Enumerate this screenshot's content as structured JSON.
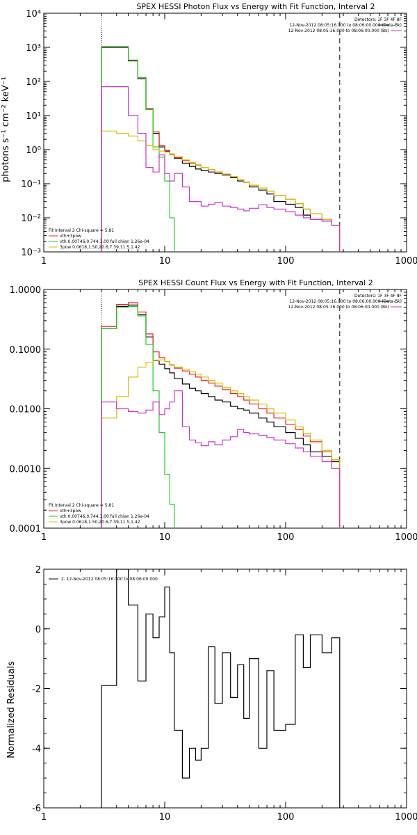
{
  "chart_data": [
    {
      "type": "line",
      "title": "SPEX HESSI Photon Flux vs Energy with Fit Function, Interval 2",
      "ylabel": "photons s⁻¹ cm⁻² keV⁻¹",
      "xlabel": "",
      "xscale": "log",
      "yscale": "log",
      "xlim": [
        1,
        1000
      ],
      "ylim": [
        0.001,
        10000
      ],
      "x_ticks": [
        1,
        10,
        100,
        1000
      ],
      "x_tick_labels": [
        "1",
        "10",
        "100",
        "1000"
      ],
      "y_ticks": [
        0.001,
        0.01,
        0.1,
        1,
        10,
        100,
        1000,
        10000
      ],
      "y_tick_labels": [
        "10⁻³",
        "10⁻²",
        "10⁻¹",
        "10⁰",
        "10¹",
        "10²",
        "10³",
        "10⁴"
      ],
      "vlines": [
        {
          "x": 3,
          "style": "dotted"
        },
        {
          "x": 280,
          "style": "dashed"
        }
      ],
      "top_legend": {
        "placement": "top-right",
        "lines": [
          {
            "text": "Detectors: 1F 3F 4F 8F",
            "color": "#000000"
          },
          {
            "text": "12-Nov-2012 08:05:16.000 to 08:06:00.000 (Data-Bk)",
            "color": "#000000"
          },
          {
            "text": "12-Nov-2012 08:05:16.000 to 08:06:00.000 (Bk)",
            "color": "#cc33cc"
          }
        ]
      },
      "fit_legend": {
        "placement": "bottom-left",
        "title": "Fit Interval 2   Chi-square = 5.81",
        "lines": [
          {
            "text": "vth+3pow",
            "color": "#ee2222"
          },
          {
            "text": "vth 0.00746,0.744,1.00   full chian 1.26e-04",
            "color": "#22cc22"
          },
          {
            "text": "3pow 0.0618,1.50,20.6,7.39,11.5,1.42",
            "color": "#d4c000"
          }
        ]
      },
      "series": [
        {
          "role": "data-bk",
          "color": "#000000",
          "edges": [
            3,
            4,
            5,
            6,
            7,
            8,
            9,
            10,
            11,
            12,
            14,
            16,
            18,
            20,
            23,
            26,
            30,
            35,
            40,
            45,
            50,
            60,
            70,
            80,
            100,
            120,
            140,
            160,
            200,
            240,
            280
          ],
          "values": [
            1000,
            1000,
            400,
            120,
            15,
            3.0,
            1.2,
            0.9,
            0.75,
            0.55,
            0.4,
            0.32,
            0.27,
            0.24,
            0.22,
            0.2,
            0.18,
            0.15,
            0.12,
            0.11,
            0.08,
            0.065,
            0.05,
            0.03,
            0.025,
            0.02,
            0.012,
            0.009,
            0.008,
            0.006
          ]
        },
        {
          "role": "total-fit",
          "color": "#ee2222",
          "edges": [
            3,
            4,
            5,
            6,
            7,
            8,
            9,
            10,
            11,
            12,
            14,
            16,
            18,
            20,
            23,
            26,
            30,
            35,
            40,
            45,
            50,
            60,
            70,
            80,
            100,
            120,
            140,
            160,
            200,
            240,
            280
          ],
          "values": [
            1050,
            1050,
            420,
            130,
            16,
            3.3,
            1.3,
            0.95,
            0.72,
            0.58,
            0.48,
            0.4,
            0.35,
            0.3,
            0.26,
            0.22,
            0.19,
            0.16,
            0.13,
            0.11,
            0.09,
            0.075,
            0.06,
            0.045,
            0.035,
            0.026,
            0.018,
            0.013,
            0.009,
            0.006
          ]
        },
        {
          "role": "thermal",
          "color": "#22cc22",
          "edges": [
            3,
            4,
            5,
            6,
            7,
            8,
            9,
            10,
            11,
            12
          ],
          "values": [
            1050,
            1050,
            420,
            130,
            15,
            1.2,
            0.6,
            0.12,
            0.01,
            0.0001
          ]
        },
        {
          "role": "power-law",
          "color": "#d4c000",
          "edges": [
            3,
            4,
            5,
            6,
            7,
            8,
            9,
            10,
            11,
            12,
            14,
            16,
            18,
            20,
            23,
            26,
            30,
            35,
            40,
            45,
            50,
            60,
            70,
            80,
            100,
            120,
            140,
            160,
            200,
            240,
            280
          ],
          "values": [
            3.5,
            3.0,
            2.5,
            1.8,
            1.3,
            1.0,
            0.9,
            0.85,
            0.75,
            0.62,
            0.5,
            0.42,
            0.36,
            0.3,
            0.26,
            0.22,
            0.19,
            0.16,
            0.13,
            0.11,
            0.09,
            0.075,
            0.06,
            0.045,
            0.035,
            0.026,
            0.018,
            0.013,
            0.009,
            0.006
          ]
        },
        {
          "role": "background",
          "color": "#cc33cc",
          "edges": [
            3,
            4,
            5,
            6,
            7,
            8,
            9,
            10,
            11,
            12,
            14,
            16,
            18,
            20,
            23,
            26,
            30,
            35,
            40,
            45,
            50,
            60,
            70,
            80,
            100,
            120,
            140,
            160,
            200,
            240,
            280
          ],
          "values": [
            70,
            70,
            10,
            3,
            0.3,
            0.22,
            0.7,
            0.2,
            0.12,
            0.2,
            0.08,
            0.03,
            0.03,
            0.022,
            0.025,
            0.028,
            0.022,
            0.02,
            0.018,
            0.016,
            0.019,
            0.024,
            0.02,
            0.018,
            0.015,
            0.012,
            0.01,
            0.009,
            0.008,
            0.006
          ]
        }
      ]
    },
    {
      "type": "line",
      "title": "SPEX HESSI Count Flux vs Energy with Fit Function, Interval 2",
      "ylabel": "",
      "xlabel": "",
      "xscale": "log",
      "yscale": "log",
      "xlim": [
        1,
        1000
      ],
      "ylim": [
        0.0001,
        1.0
      ],
      "x_ticks": [
        1,
        10,
        100,
        1000
      ],
      "x_tick_labels": [
        "1",
        "10",
        "100",
        "1000"
      ],
      "y_ticks": [
        0.0001,
        0.001,
        0.01,
        0.1,
        1.0
      ],
      "y_tick_labels": [
        "0.0001",
        "0.0010",
        "0.0100",
        "0.1000",
        "1.0000"
      ],
      "vlines": [
        {
          "x": 3,
          "style": "dotted"
        },
        {
          "x": 280,
          "style": "dashed"
        }
      ],
      "top_legend": {
        "placement": "top-right",
        "lines": [
          {
            "text": "Detectors: 1F 3F 4F 8F",
            "color": "#000000"
          },
          {
            "text": "12-Nov-2012 08:05:16.000 to 08:06:00.000 (Data-Bk)",
            "color": "#000000"
          },
          {
            "text": "12-Nov-2012 08:05:16.000 to 08:06:00.000 (Bk)",
            "color": "#cc33cc"
          }
        ]
      },
      "fit_legend": {
        "placement": "bottom-left",
        "title": "Fit Interval 2   Chi-square = 5.81",
        "lines": [
          {
            "text": "vth+3pow",
            "color": "#ee2222"
          },
          {
            "text": "vth 0.00746,0.744,1.00   full chian 1.26e-04",
            "color": "#22cc22"
          },
          {
            "text": "3pow 0.0618,1.50,20.6,7.39,11.5,1.42",
            "color": "#d4c000"
          }
        ]
      },
      "series": [
        {
          "role": "data-bk",
          "color": "#000000",
          "edges": [
            3,
            4,
            5,
            6,
            7,
            8,
            9,
            10,
            11,
            12,
            14,
            16,
            18,
            20,
            23,
            26,
            30,
            35,
            40,
            45,
            50,
            60,
            70,
            80,
            100,
            120,
            140,
            160,
            200,
            240,
            280
          ],
          "values": [
            0.22,
            0.52,
            0.55,
            0.38,
            0.16,
            0.065,
            0.056,
            0.047,
            0.04,
            0.032,
            0.026,
            0.022,
            0.02,
            0.018,
            0.016,
            0.014,
            0.013,
            0.011,
            0.01,
            0.0095,
            0.0085,
            0.007,
            0.006,
            0.005,
            0.004,
            0.0032,
            0.0025,
            0.0019,
            0.0016,
            0.0013
          ]
        },
        {
          "role": "total-fit",
          "color": "#ee2222",
          "edges": [
            3,
            4,
            5,
            6,
            7,
            8,
            9,
            10,
            11,
            12,
            14,
            16,
            18,
            20,
            23,
            26,
            30,
            35,
            40,
            45,
            50,
            60,
            70,
            80,
            100,
            120,
            140,
            160,
            200,
            240,
            280
          ],
          "values": [
            0.24,
            0.56,
            0.6,
            0.42,
            0.18,
            0.09,
            0.072,
            0.062,
            0.054,
            0.048,
            0.043,
            0.038,
            0.034,
            0.03,
            0.027,
            0.024,
            0.021,
            0.018,
            0.016,
            0.014,
            0.012,
            0.01,
            0.0085,
            0.007,
            0.0055,
            0.0045,
            0.0035,
            0.0028,
            0.0019,
            0.0014
          ]
        },
        {
          "role": "thermal",
          "color": "#22cc22",
          "edges": [
            3,
            4,
            5,
            6,
            7,
            8,
            9,
            10,
            11,
            12
          ],
          "values": [
            0.22,
            0.5,
            0.52,
            0.36,
            0.12,
            0.02,
            0.004,
            0.0008,
            0.00025,
            0.0001
          ]
        },
        {
          "role": "power-law",
          "color": "#d4c000",
          "edges": [
            3,
            4,
            5,
            6,
            7,
            8,
            9,
            10,
            11,
            12,
            14,
            16,
            18,
            20,
            23,
            26,
            30,
            35,
            40,
            45,
            50,
            60,
            70,
            80,
            100,
            120,
            140,
            160,
            200,
            240,
            280
          ],
          "values": [
            0.007,
            0.016,
            0.034,
            0.05,
            0.06,
            0.064,
            0.066,
            0.062,
            0.055,
            0.05,
            0.046,
            0.042,
            0.038,
            0.034,
            0.03,
            0.027,
            0.023,
            0.02,
            0.018,
            0.016,
            0.014,
            0.012,
            0.01,
            0.0085,
            0.0065,
            0.005,
            0.0039,
            0.003,
            0.002,
            0.0014
          ]
        },
        {
          "role": "background",
          "color": "#cc33cc",
          "edges": [
            3,
            4,
            5,
            6,
            7,
            8,
            9,
            10,
            11,
            12,
            14,
            16,
            18,
            20,
            23,
            26,
            30,
            35,
            40,
            45,
            50,
            60,
            70,
            80,
            100,
            120,
            140,
            160,
            200,
            240,
            280
          ],
          "values": [
            0.013,
            0.01,
            0.009,
            0.0085,
            0.0095,
            0.013,
            0.008,
            0.01,
            0.013,
            0.02,
            0.005,
            0.003,
            0.0027,
            0.0024,
            0.0028,
            0.0025,
            0.003,
            0.0034,
            0.0045,
            0.004,
            0.0038,
            0.0036,
            0.0033,
            0.003,
            0.0026,
            0.0022,
            0.0019,
            0.0016,
            0.0013,
            0.001
          ]
        }
      ]
    },
    {
      "type": "line",
      "title": "",
      "ylabel": "Normalized Residuals",
      "xlabel": "",
      "xscale": "log",
      "yscale": "linear",
      "xlim": [
        1,
        1000
      ],
      "ylim": [
        -6,
        2
      ],
      "x_ticks": [
        1,
        10,
        100,
        1000
      ],
      "x_tick_labels": [
        "1",
        "10",
        "100",
        "1000"
      ],
      "y_ticks": [
        -6,
        -4,
        -2,
        0,
        2
      ],
      "y_tick_labels": [
        "-6",
        "-4",
        "-2",
        "0",
        "2"
      ],
      "legend": {
        "placement": "top-left",
        "text": "2. 12-Nov-2012 08:05:16.000 to 08:06:00.000",
        "color": "#000000"
      },
      "series": [
        {
          "role": "residuals",
          "color": "#000000",
          "edges": [
            3,
            4,
            5,
            6,
            7,
            8,
            9,
            10,
            11,
            12,
            14,
            16,
            18,
            20,
            23,
            26,
            30,
            35,
            40,
            45,
            50,
            60,
            70,
            80,
            100,
            120,
            140,
            160,
            200,
            240,
            280
          ],
          "values": [
            -1.9,
            2.0,
            0.8,
            -1.75,
            0.5,
            -0.3,
            0.4,
            1.4,
            -0.8,
            -3.4,
            -5.0,
            -4.0,
            -4.4,
            -4.0,
            -0.6,
            -2.5,
            -0.8,
            -2.3,
            -1.2,
            -3.0,
            -1.0,
            -4.0,
            -1.4,
            -3.4,
            -3.2,
            -0.2,
            -1.3,
            -0.2,
            -0.8,
            -0.3
          ]
        }
      ]
    }
  ]
}
